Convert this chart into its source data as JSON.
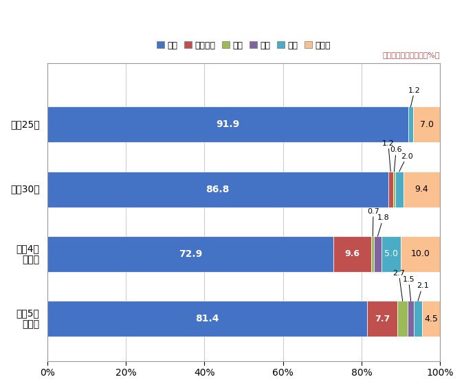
{
  "rows": [
    "平成25年",
    "平成30年",
    "令和4年\n上半期",
    "令和5年\n上半期"
  ],
  "categories": [
    "中国",
    "ベトナム",
    "タイ",
    "韓国",
    "台湾",
    "その他"
  ],
  "colors": [
    "#4472C4",
    "#C0504D",
    "#9BBB59",
    "#8064A2",
    "#4BACC6",
    "#FAC090"
  ],
  "values": [
    [
      91.9,
      0.0,
      0.0,
      0.0,
      1.2,
      7.0
    ],
    [
      86.8,
      1.2,
      0.6,
      0.0,
      2.0,
      9.4
    ],
    [
      72.9,
      9.6,
      0.7,
      1.8,
      5.0,
      10.0
    ],
    [
      81.4,
      7.7,
      2.7,
      1.5,
      2.1,
      4.5
    ]
  ],
  "note": "枚内の数字は構成比（%）",
  "xlim": [
    0,
    100
  ],
  "xticks": [
    0,
    20,
    40,
    60,
    80,
    100
  ],
  "xticklabels": [
    "0%",
    "20%",
    "40%",
    "60%",
    "80%",
    "100%"
  ],
  "background_color": "#FFFFFF",
  "grid_color": "#CCCCCC",
  "bar_height": 0.55
}
